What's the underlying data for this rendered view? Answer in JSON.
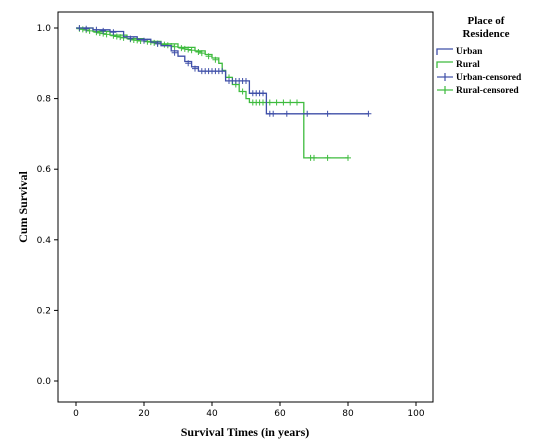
{
  "chart_data": {
    "type": "line",
    "subtype": "kaplan-meier-survival",
    "xlabel": "Survival Times (in years)",
    "ylabel": "Cum Survival",
    "xlim": [
      0,
      100
    ],
    "ylim": [
      0,
      1.0
    ],
    "x_ticks": [
      "0",
      "20",
      "40",
      "60",
      "80",
      "100"
    ],
    "y_ticks": [
      "0.0",
      "0.2",
      "0.4",
      "0.6",
      "0.8",
      "1.0"
    ],
    "x_tick_values": [
      0,
      20,
      40,
      60,
      80,
      100
    ],
    "y_tick_values": [
      0,
      0.2,
      0.4,
      0.6,
      0.8,
      1.0
    ],
    "grid": false,
    "legend": {
      "title_line1": "Place of",
      "title_line2": "Residence",
      "placement": "right",
      "entries": [
        {
          "label": "Urban",
          "kind": "step",
          "color": "#3f4fa8"
        },
        {
          "label": "Rural",
          "kind": "step",
          "color": "#3dbb3d"
        },
        {
          "label": "Urban-censored",
          "kind": "censor",
          "color": "#3f4fa8"
        },
        {
          "label": "Rural-censored",
          "kind": "censor",
          "color": "#3dbb3d"
        }
      ]
    },
    "series": [
      {
        "name": "Urban",
        "color": "#3f4fa8",
        "steps": [
          [
            0,
            1.0
          ],
          [
            5,
            0.995
          ],
          [
            10,
            0.99
          ],
          [
            14,
            0.975
          ],
          [
            18,
            0.968
          ],
          [
            22,
            0.96
          ],
          [
            25,
            0.95
          ],
          [
            28,
            0.935
          ],
          [
            30,
            0.92
          ],
          [
            32,
            0.905
          ],
          [
            34,
            0.89
          ],
          [
            36,
            0.878
          ],
          [
            44,
            0.85
          ],
          [
            51,
            0.815
          ],
          [
            56,
            0.757
          ],
          [
            86,
            0.757
          ]
        ],
        "censored": [
          [
            1,
            1.0
          ],
          [
            3,
            0.998
          ],
          [
            6,
            0.995
          ],
          [
            8,
            0.992
          ],
          [
            11,
            0.988
          ],
          [
            16,
            0.97
          ],
          [
            20,
            0.964
          ],
          [
            24,
            0.955
          ],
          [
            29,
            0.93
          ],
          [
            33,
            0.9
          ],
          [
            35,
            0.885
          ],
          [
            37,
            0.878
          ],
          [
            38,
            0.878
          ],
          [
            39,
            0.878
          ],
          [
            40,
            0.878
          ],
          [
            41,
            0.878
          ],
          [
            42,
            0.878
          ],
          [
            43,
            0.878
          ],
          [
            45,
            0.85
          ],
          [
            46,
            0.85
          ],
          [
            47,
            0.85
          ],
          [
            48,
            0.85
          ],
          [
            49,
            0.85
          ],
          [
            50,
            0.85
          ],
          [
            52,
            0.815
          ],
          [
            53,
            0.815
          ],
          [
            54,
            0.815
          ],
          [
            55,
            0.815
          ],
          [
            57,
            0.757
          ],
          [
            58,
            0.757
          ],
          [
            62,
            0.757
          ],
          [
            68,
            0.757
          ],
          [
            74,
            0.757
          ],
          [
            86,
            0.757
          ]
        ]
      },
      {
        "name": "Rural",
        "color": "#3dbb3d",
        "steps": [
          [
            0,
            1.0
          ],
          [
            5,
            0.99
          ],
          [
            10,
            0.98
          ],
          [
            15,
            0.97
          ],
          [
            20,
            0.962
          ],
          [
            25,
            0.955
          ],
          [
            30,
            0.945
          ],
          [
            35,
            0.935
          ],
          [
            38,
            0.925
          ],
          [
            40,
            0.915
          ],
          [
            42,
            0.9
          ],
          [
            43,
            0.88
          ],
          [
            44,
            0.86
          ],
          [
            46,
            0.84
          ],
          [
            48,
            0.82
          ],
          [
            50,
            0.8
          ],
          [
            51,
            0.789
          ],
          [
            67,
            0.632
          ],
          [
            80,
            0.632
          ]
        ],
        "censored": [
          [
            1,
            0.998
          ],
          [
            2,
            0.996
          ],
          [
            3,
            0.994
          ],
          [
            4,
            0.992
          ],
          [
            6,
            0.988
          ],
          [
            7,
            0.986
          ],
          [
            8,
            0.984
          ],
          [
            9,
            0.982
          ],
          [
            11,
            0.978
          ],
          [
            12,
            0.976
          ],
          [
            13,
            0.974
          ],
          [
            14,
            0.972
          ],
          [
            16,
            0.968
          ],
          [
            17,
            0.966
          ],
          [
            18,
            0.965
          ],
          [
            19,
            0.963
          ],
          [
            21,
            0.961
          ],
          [
            22,
            0.96
          ],
          [
            23,
            0.958
          ],
          [
            24,
            0.956
          ],
          [
            26,
            0.953
          ],
          [
            27,
            0.951
          ],
          [
            28,
            0.949
          ],
          [
            29,
            0.947
          ],
          [
            31,
            0.943
          ],
          [
            32,
            0.941
          ],
          [
            33,
            0.939
          ],
          [
            34,
            0.937
          ],
          [
            36,
            0.932
          ],
          [
            37,
            0.929
          ],
          [
            39,
            0.92
          ],
          [
            41,
            0.91
          ],
          [
            45,
            0.86
          ],
          [
            47,
            0.84
          ],
          [
            49,
            0.82
          ],
          [
            52,
            0.789
          ],
          [
            53,
            0.789
          ],
          [
            54,
            0.789
          ],
          [
            55,
            0.789
          ],
          [
            56,
            0.789
          ],
          [
            57,
            0.789
          ],
          [
            59,
            0.789
          ],
          [
            61,
            0.789
          ],
          [
            63,
            0.789
          ],
          [
            65,
            0.789
          ],
          [
            69,
            0.632
          ],
          [
            70,
            0.632
          ],
          [
            74,
            0.632
          ],
          [
            80,
            0.632
          ]
        ]
      }
    ]
  }
}
